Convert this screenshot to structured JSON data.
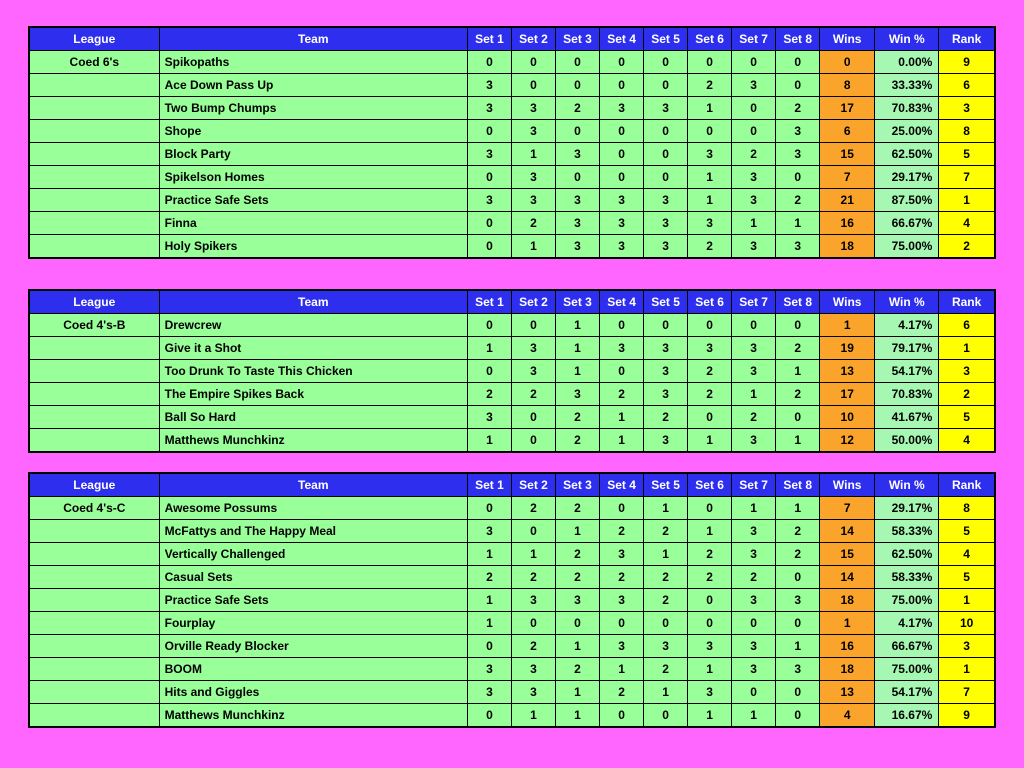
{
  "colors": {
    "background": "#FF66FF",
    "header_bg": "#2E2EEF",
    "header_text": "#FFFFFF",
    "cell_green": "#99FF99",
    "winpct_green": "#A6F7B1",
    "wins_orange": "#FBA42C",
    "rank_yellow": "#FFFF00",
    "grid_border": "#000000"
  },
  "columns": [
    "League",
    "Team",
    "Set 1",
    "Set 2",
    "Set 3",
    "Set 4",
    "Set 5",
    "Set 6",
    "Set 7",
    "Set 8",
    "Wins",
    "Win %",
    "Rank"
  ],
  "tables": [
    {
      "league": "Coed 6's",
      "rows": [
        {
          "team": "Spikopaths",
          "sets": [
            0,
            0,
            0,
            0,
            0,
            0,
            0,
            0
          ],
          "wins": 0,
          "win_pct": "0.00%",
          "rank": 9
        },
        {
          "team": "Ace Down Pass Up",
          "sets": [
            3,
            0,
            0,
            0,
            0,
            2,
            3,
            0
          ],
          "wins": 8,
          "win_pct": "33.33%",
          "rank": 6
        },
        {
          "team": "Two Bump Chumps",
          "sets": [
            3,
            3,
            2,
            3,
            3,
            1,
            0,
            2
          ],
          "wins": 17,
          "win_pct": "70.83%",
          "rank": 3
        },
        {
          "team": "Shope",
          "sets": [
            0,
            3,
            0,
            0,
            0,
            0,
            0,
            3
          ],
          "wins": 6,
          "win_pct": "25.00%",
          "rank": 8
        },
        {
          "team": "Block Party",
          "sets": [
            3,
            1,
            3,
            0,
            0,
            3,
            2,
            3
          ],
          "wins": 15,
          "win_pct": "62.50%",
          "rank": 5
        },
        {
          "team": "Spikelson Homes",
          "sets": [
            0,
            3,
            0,
            0,
            0,
            1,
            3,
            0
          ],
          "wins": 7,
          "win_pct": "29.17%",
          "rank": 7
        },
        {
          "team": "Practice Safe Sets",
          "sets": [
            3,
            3,
            3,
            3,
            3,
            1,
            3,
            2
          ],
          "wins": 21,
          "win_pct": "87.50%",
          "rank": 1
        },
        {
          "team": "Finna",
          "sets": [
            0,
            2,
            3,
            3,
            3,
            3,
            1,
            1
          ],
          "wins": 16,
          "win_pct": "66.67%",
          "rank": 4
        },
        {
          "team": "Holy Spikers",
          "sets": [
            0,
            1,
            3,
            3,
            3,
            2,
            3,
            3
          ],
          "wins": 18,
          "win_pct": "75.00%",
          "rank": 2
        }
      ]
    },
    {
      "league": "Coed 4's-B",
      "rows": [
        {
          "team": "Drewcrew",
          "sets": [
            0,
            0,
            1,
            0,
            0,
            0,
            0,
            0
          ],
          "wins": 1,
          "win_pct": "4.17%",
          "rank": 6
        },
        {
          "team": "Give it a Shot",
          "sets": [
            1,
            3,
            1,
            3,
            3,
            3,
            3,
            2
          ],
          "wins": 19,
          "win_pct": "79.17%",
          "rank": 1
        },
        {
          "team": "Too Drunk To Taste This Chicken",
          "sets": [
            0,
            3,
            1,
            0,
            3,
            2,
            3,
            1
          ],
          "wins": 13,
          "win_pct": "54.17%",
          "rank": 3
        },
        {
          "team": "The Empire Spikes Back",
          "sets": [
            2,
            2,
            3,
            2,
            3,
            2,
            1,
            2
          ],
          "wins": 17,
          "win_pct": "70.83%",
          "rank": 2
        },
        {
          "team": "Ball So Hard",
          "sets": [
            3,
            0,
            2,
            1,
            2,
            0,
            2,
            0
          ],
          "wins": 10,
          "win_pct": "41.67%",
          "rank": 5
        },
        {
          "team": "Matthews Munchkinz",
          "sets": [
            1,
            0,
            2,
            1,
            3,
            1,
            3,
            1
          ],
          "wins": 12,
          "win_pct": "50.00%",
          "rank": 4
        }
      ]
    },
    {
      "league": "Coed 4's-C",
      "rows": [
        {
          "team": "Awesome Possums",
          "sets": [
            0,
            2,
            2,
            0,
            1,
            0,
            1,
            1
          ],
          "wins": 7,
          "win_pct": "29.17%",
          "rank": 8
        },
        {
          "team": "McFattys and The Happy Meal",
          "sets": [
            3,
            0,
            1,
            2,
            2,
            1,
            3,
            2
          ],
          "wins": 14,
          "win_pct": "58.33%",
          "rank": 5
        },
        {
          "team": "Vertically Challenged",
          "sets": [
            1,
            1,
            2,
            3,
            1,
            2,
            3,
            2
          ],
          "wins": 15,
          "win_pct": "62.50%",
          "rank": 4
        },
        {
          "team": "Casual Sets",
          "sets": [
            2,
            2,
            2,
            2,
            2,
            2,
            2,
            0
          ],
          "wins": 14,
          "win_pct": "58.33%",
          "rank": 5
        },
        {
          "team": "Practice Safe Sets",
          "sets": [
            1,
            3,
            3,
            3,
            2,
            0,
            3,
            3
          ],
          "wins": 18,
          "win_pct": "75.00%",
          "rank": 1
        },
        {
          "team": "Fourplay",
          "sets": [
            1,
            0,
            0,
            0,
            0,
            0,
            0,
            0
          ],
          "wins": 1,
          "win_pct": "4.17%",
          "rank": 10
        },
        {
          "team": "Orville Ready Blocker",
          "sets": [
            0,
            2,
            1,
            3,
            3,
            3,
            3,
            1
          ],
          "wins": 16,
          "win_pct": "66.67%",
          "rank": 3
        },
        {
          "team": "BOOM",
          "sets": [
            3,
            3,
            2,
            1,
            2,
            1,
            3,
            3
          ],
          "wins": 18,
          "win_pct": "75.00%",
          "rank": 1
        },
        {
          "team": "Hits and Giggles",
          "sets": [
            3,
            3,
            1,
            2,
            1,
            3,
            0,
            0
          ],
          "wins": 13,
          "win_pct": "54.17%",
          "rank": 7
        },
        {
          "team": "Matthews Munchkinz",
          "sets": [
            0,
            1,
            1,
            0,
            0,
            1,
            1,
            0
          ],
          "wins": 4,
          "win_pct": "16.67%",
          "rank": 9
        }
      ]
    }
  ]
}
